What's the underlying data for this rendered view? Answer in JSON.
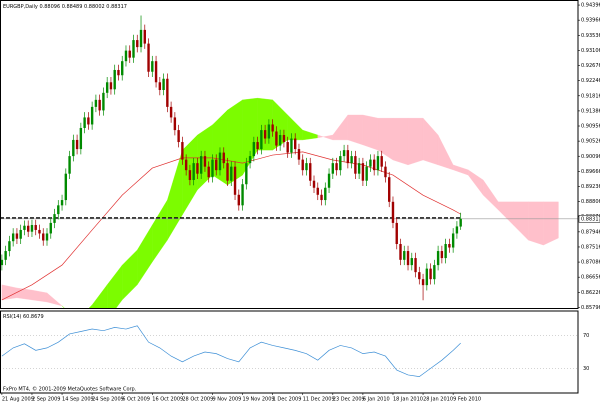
{
  "chart_data": {
    "type": "candlestick",
    "title": "EURGBP,Daily",
    "open": [
      0.87,
      0.8715,
      0.874,
      0.8768,
      0.879,
      0.8775,
      0.88,
      0.8812,
      0.8795,
      0.8814,
      0.88,
      0.879,
      0.877,
      0.879,
      0.882,
      0.8845,
      0.887,
      0.8885,
      0.896,
      0.901,
      0.9056,
      0.903,
      0.909,
      0.912,
      0.91,
      0.915,
      0.917,
      0.914,
      0.919,
      0.922,
      0.92,
      0.9255,
      0.924,
      0.928,
      0.931,
      0.929,
      0.934,
      0.932,
      0.9369,
      0.933,
      0.925,
      0.928,
      0.922,
      0.9198,
      0.923,
      0.915,
      0.912,
      0.9084,
      0.905,
      0.9,
      0.897,
      0.8942,
      0.899,
      0.896,
      0.901,
      0.898,
      0.895,
      0.9,
      0.897,
      0.902,
      0.899,
      0.894,
      0.898,
      0.89,
      0.887,
      0.893,
      0.899,
      0.901,
      0.905,
      0.903,
      0.9084,
      0.906,
      0.91,
      0.908,
      0.904,
      0.907,
      0.905,
      0.902,
      0.906,
      0.903,
      0.9,
      0.897,
      0.899,
      0.894,
      0.892,
      0.89,
      0.8885,
      0.892,
      0.896,
      0.899,
      0.897,
      0.901,
      0.9027,
      0.899,
      0.901,
      0.896,
      0.899,
      0.894,
      0.898,
      0.9,
      0.897,
      0.901,
      0.898,
      0.895,
      0.888,
      0.882,
      0.876,
      0.8715,
      0.874,
      0.87,
      0.872,
      0.868,
      0.866,
      0.8643,
      0.869,
      0.866,
      0.87,
      0.874,
      0.872,
      0.876,
      0.875,
      0.879,
      0.88096
    ],
    "high": [
      0.873,
      0.8755,
      0.8783,
      0.8805,
      0.8805,
      0.8815,
      0.8827,
      0.8827,
      0.8829,
      0.8829,
      0.8815,
      0.8805,
      0.8805,
      0.8835,
      0.886,
      0.8885,
      0.89,
      0.8975,
      0.9025,
      0.9071,
      0.9071,
      0.9105,
      0.9135,
      0.9135,
      0.9165,
      0.9185,
      0.9185,
      0.9205,
      0.9235,
      0.9235,
      0.927,
      0.927,
      0.9295,
      0.9325,
      0.9325,
      0.9355,
      0.9355,
      0.941,
      0.9384,
      0.9345,
      0.9295,
      0.9295,
      0.9235,
      0.9245,
      0.9245,
      0.9165,
      0.9135,
      0.9099,
      0.9065,
      0.9015,
      0.8985,
      0.9005,
      0.9005,
      0.9025,
      0.9025,
      0.8995,
      0.9015,
      0.9015,
      0.9035,
      0.9035,
      0.9005,
      0.8995,
      0.8995,
      0.8915,
      0.8945,
      0.9005,
      0.9025,
      0.9065,
      0.9065,
      0.9099,
      0.9099,
      0.9115,
      0.9115,
      0.9095,
      0.9085,
      0.9085,
      0.9065,
      0.9075,
      0.9075,
      0.9045,
      0.9015,
      0.9005,
      0.9005,
      0.8955,
      0.8935,
      0.8915,
      0.8935,
      0.8975,
      0.9005,
      0.9005,
      0.9025,
      0.9042,
      0.9042,
      0.9025,
      0.9025,
      0.9005,
      0.9005,
      0.8995,
      0.9015,
      0.9015,
      0.9025,
      0.9025,
      0.8995,
      0.8965,
      0.8895,
      0.8835,
      0.8775,
      0.8755,
      0.8755,
      0.8735,
      0.8735,
      0.8695,
      0.8675,
      0.8705,
      0.8705,
      0.8715,
      0.8755,
      0.8755,
      0.8775,
      0.8775,
      0.8805,
      0.8825,
      0.88489
    ],
    "low": [
      0.8685,
      0.87,
      0.8725,
      0.8753,
      0.876,
      0.876,
      0.8785,
      0.878,
      0.878,
      0.8785,
      0.8775,
      0.8755,
      0.8755,
      0.8775,
      0.8805,
      0.883,
      0.8855,
      0.887,
      0.8945,
      0.8995,
      0.9015,
      0.9015,
      0.9075,
      0.9085,
      0.9085,
      0.9135,
      0.9125,
      0.9125,
      0.9175,
      0.9185,
      0.9185,
      0.9225,
      0.9225,
      0.9265,
      0.9275,
      0.9275,
      0.9305,
      0.9305,
      0.9315,
      0.9235,
      0.9235,
      0.9205,
      0.9183,
      0.9183,
      0.9135,
      0.9105,
      0.9069,
      0.9035,
      0.8985,
      0.8955,
      0.8927,
      0.8927,
      0.8945,
      0.8945,
      0.8965,
      0.8935,
      0.8935,
      0.8955,
      0.8955,
      0.8975,
      0.8925,
      0.8925,
      0.8885,
      0.8855,
      0.8855,
      0.8915,
      0.8975,
      0.8995,
      0.9015,
      0.9015,
      0.9045,
      0.9045,
      0.9065,
      0.9025,
      0.9025,
      0.9035,
      0.9005,
      0.9005,
      0.9015,
      0.8985,
      0.8955,
      0.8955,
      0.8925,
      0.8905,
      0.8885,
      0.887,
      0.887,
      0.8905,
      0.8945,
      0.8955,
      0.8955,
      0.8995,
      0.8975,
      0.8975,
      0.8945,
      0.8945,
      0.8925,
      0.8925,
      0.8965,
      0.8955,
      0.8955,
      0.8965,
      0.8935,
      0.8865,
      0.8805,
      0.8745,
      0.87,
      0.87,
      0.8685,
      0.8685,
      0.8665,
      0.8645,
      0.86,
      0.8628,
      0.8645,
      0.8645,
      0.8685,
      0.8705,
      0.8705,
      0.8735,
      0.8735,
      0.8775,
      0.88002
    ],
    "close": [
      0.8715,
      0.874,
      0.8768,
      0.879,
      0.8775,
      0.88,
      0.8812,
      0.8795,
      0.8814,
      0.88,
      0.879,
      0.877,
      0.879,
      0.882,
      0.8845,
      0.887,
      0.8885,
      0.896,
      0.901,
      0.9056,
      0.903,
      0.909,
      0.912,
      0.91,
      0.915,
      0.917,
      0.914,
      0.919,
      0.922,
      0.92,
      0.9255,
      0.924,
      0.928,
      0.931,
      0.929,
      0.934,
      0.932,
      0.9369,
      0.933,
      0.925,
      0.928,
      0.922,
      0.9198,
      0.923,
      0.915,
      0.912,
      0.9084,
      0.905,
      0.9,
      0.897,
      0.8942,
      0.899,
      0.896,
      0.901,
      0.898,
      0.895,
      0.9,
      0.897,
      0.902,
      0.899,
      0.894,
      0.898,
      0.89,
      0.887,
      0.893,
      0.899,
      0.901,
      0.905,
      0.903,
      0.9084,
      0.906,
      0.91,
      0.908,
      0.904,
      0.907,
      0.905,
      0.902,
      0.906,
      0.903,
      0.9,
      0.897,
      0.899,
      0.894,
      0.892,
      0.89,
      0.8885,
      0.892,
      0.896,
      0.899,
      0.897,
      0.901,
      0.9027,
      0.899,
      0.901,
      0.896,
      0.899,
      0.894,
      0.898,
      0.9,
      0.897,
      0.901,
      0.898,
      0.895,
      0.888,
      0.882,
      0.876,
      0.8715,
      0.874,
      0.87,
      0.872,
      0.868,
      0.866,
      0.8643,
      0.869,
      0.866,
      0.87,
      0.874,
      0.872,
      0.876,
      0.875,
      0.879,
      0.881,
      0.88317
    ],
    "up_color": "#008a00",
    "down_color": "#a00000",
    "xlim": [
      -0.5,
      153.2
    ],
    "ylim": [
      0.8578,
      0.9454
    ],
    "yticks": [
      {
        "value": 0.94396,
        "label": "0.94396"
      },
      {
        "value": 0.93966,
        "label": "0.93966"
      },
      {
        "value": 0.93536,
        "label": "0.93536"
      },
      {
        "value": 0.93106,
        "label": "0.93106"
      },
      {
        "value": 0.92676,
        "label": "0.92676"
      },
      {
        "value": 0.92246,
        "label": "0.92246"
      },
      {
        "value": 0.91816,
        "label": "0.91816"
      },
      {
        "value": 0.91386,
        "label": "0.91386"
      },
      {
        "value": 0.90956,
        "label": "0.90956"
      },
      {
        "value": 0.90526,
        "label": "0.90526"
      },
      {
        "value": 0.90096,
        "label": "0.90096"
      },
      {
        "value": 0.89666,
        "label": "0.89666"
      },
      {
        "value": 0.89236,
        "label": "0.89236"
      },
      {
        "value": 0.88806,
        "label": "0.88806"
      },
      {
        "value": 0.88376,
        "label": "0.88376"
      },
      {
        "value": 0.87946,
        "label": "0.87946"
      },
      {
        "value": 0.87516,
        "label": "0.87516"
      },
      {
        "value": 0.87086,
        "label": "0.87086"
      },
      {
        "value": 0.86656,
        "label": "0.86656"
      },
      {
        "value": 0.86226,
        "label": "0.86226"
      },
      {
        "value": 0.85796,
        "label": "0.85796"
      }
    ],
    "xticks": [
      {
        "value": 0,
        "label": "21 Aug 2009"
      },
      {
        "value": 8,
        "label": "2 Sep 2009"
      },
      {
        "value": 16,
        "label": "14 Sep 2009"
      },
      {
        "value": 24,
        "label": "24 Sep 2009"
      },
      {
        "value": 32,
        "label": "6 Oct 2009"
      },
      {
        "value": 40,
        "label": "16 Oct 2009"
      },
      {
        "value": 48,
        "label": "28 Oct 2009"
      },
      {
        "value": 56,
        "label": "9 Nov 2009"
      },
      {
        "value": 64,
        "label": "19 Nov 2009"
      },
      {
        "value": 72,
        "label": "1 Dec 2009"
      },
      {
        "value": 80,
        "label": "11 Dec 2009"
      },
      {
        "value": 88,
        "label": "23 Dec 2009"
      },
      {
        "value": 96,
        "label": "6 Jan 2010"
      },
      {
        "value": 104,
        "label": "18 Jan 2010"
      },
      {
        "value": 112,
        "label": "28 Jan 2010"
      },
      {
        "value": 120,
        "label": "9 Feb 2010"
      }
    ],
    "level": 0.8834,
    "cloud": {
      "x": [
        0,
        4,
        8,
        12,
        16,
        20,
        24,
        28,
        32,
        36,
        40,
        44,
        48,
        52,
        56,
        60,
        64,
        68,
        72,
        76,
        80,
        84,
        88,
        92,
        96,
        100,
        104,
        108,
        112,
        116,
        120,
        124,
        128,
        132,
        136,
        140,
        144,
        148
      ],
      "span_a": [
        0.8601,
        0.8607,
        0.8601,
        0.8595,
        0.8584,
        0.8544,
        0.8587,
        0.8644,
        0.87,
        0.8743,
        0.8814,
        0.8885,
        0.9027,
        0.907,
        0.9099,
        0.9141,
        0.917,
        0.9175,
        0.917,
        0.9127,
        0.9084,
        0.907,
        0.9056,
        0.9056,
        0.9042,
        0.9027,
        0.8999,
        0.8985,
        0.8999,
        0.8985,
        0.8971,
        0.8956,
        0.8899,
        0.8857,
        0.8814,
        0.8771,
        0.8757,
        0.8777
      ],
      "span_b": [
        0.8644,
        0.8635,
        0.8629,
        0.8621,
        0.8584,
        0.8538,
        0.8516,
        0.8544,
        0.8601,
        0.8644,
        0.8709,
        0.8771,
        0.8843,
        0.8914,
        0.8956,
        0.8928,
        0.8956,
        0.9027,
        0.9027,
        0.9056,
        0.9056,
        0.9062,
        0.907,
        0.9127,
        0.9127,
        0.9118,
        0.9118,
        0.9118,
        0.9118,
        0.907,
        0.8985,
        0.8971,
        0.8942,
        0.888,
        0.888,
        0.888,
        0.888,
        0.888
      ],
      "bull_color": "#7cfc00",
      "bear_color": "#ffc0cb"
    },
    "ma": {
      "x": [
        0,
        8,
        16,
        24,
        32,
        40,
        48,
        56,
        64,
        72,
        80,
        88,
        96,
        104,
        112,
        120,
        122
      ],
      "values": [
        0.8601,
        0.8644,
        0.87,
        0.88,
        0.8899,
        0.8976,
        0.9005,
        0.9005,
        0.899,
        0.9013,
        0.9022,
        0.8999,
        0.8985,
        0.8956,
        0.8899,
        0.8857,
        0.8845
      ],
      "color": "#e03030"
    },
    "rsi": {
      "name": "RSI(14)",
      "x": [
        0,
        3,
        6,
        9,
        12,
        15,
        18,
        21,
        24,
        27,
        30,
        33,
        36,
        39,
        42,
        45,
        48,
        51,
        54,
        57,
        60,
        63,
        66,
        69,
        72,
        75,
        78,
        81,
        84,
        87,
        90,
        93,
        96,
        99,
        102,
        105,
        108,
        111,
        114,
        117,
        120,
        122
      ],
      "values": [
        45,
        55,
        60,
        52,
        55,
        62,
        72,
        75,
        78,
        76,
        80,
        78,
        82,
        62,
        55,
        45,
        38,
        45,
        50,
        48,
        42,
        38,
        55,
        62,
        58,
        55,
        52,
        48,
        40,
        52,
        58,
        55,
        48,
        50,
        45,
        28,
        22,
        20,
        30,
        40,
        52,
        60.8679
      ],
      "color": "#3d8fd6",
      "ylim": [
        0,
        100
      ],
      "yticks": [
        70,
        30
      ]
    },
    "footer": "FxPro MT4, © 2001-2009 MetaQuotes Software Corp."
  }
}
